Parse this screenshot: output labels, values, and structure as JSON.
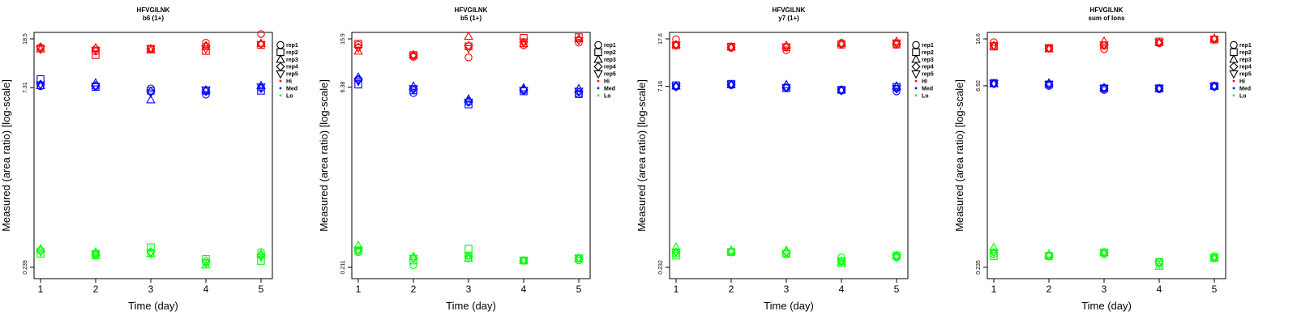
{
  "colors": {
    "Hi": "#ff0000",
    "Med": "#0000ff",
    "Lo": "#00ff00",
    "axis": "#000000"
  },
  "legend_labels": [
    "rep1",
    "rep2",
    "rep3",
    "rep4",
    "rep5",
    "Hi",
    "Med",
    "Lo"
  ],
  "chart_data": [
    {
      "type": "scatter",
      "title": "HFVGILNK",
      "subtitle": "b6 (1+)",
      "xlabel": "Time (day)",
      "ylabel": "Measured (area ratio) [log-scale]",
      "yscale": "log",
      "ylim": [
        0.239,
        18.5
      ],
      "yticks": [
        "0.239",
        "7.31",
        "18.5"
      ],
      "x": [
        1,
        2,
        3,
        4,
        5
      ],
      "grid": false,
      "legend_position": "right",
      "series": [
        {
          "name": "Hi",
          "color": "#ff0000",
          "points": [
            {
              "rep": "rep1",
              "values": [
                15.6,
                14.6,
                15.3,
                17.2,
                20.3
              ]
            },
            {
              "rep": "rep2",
              "values": [
                15.4,
                13.6,
                15.2,
                14.7,
                16.5
              ]
            },
            {
              "rep": "rep3",
              "values": [
                15.3,
                15.6,
                15.0,
                16.0,
                17.0
              ]
            },
            {
              "rep": "rep4",
              "values": [
                15.9,
                15.4,
                15.4,
                16.3,
                16.8
              ]
            },
            {
              "rep": "rep5",
              "values": [
                15.2,
                14.9,
                15.4,
                15.2,
                16.6
              ]
            }
          ]
        },
        {
          "name": "Med",
          "color": "#0000ff",
          "points": [
            {
              "rep": "rep1",
              "values": [
                7.5,
                7.5,
                7.2,
                6.4,
                7.3
              ]
            },
            {
              "rep": "rep2",
              "values": [
                8.6,
                7.4,
                6.9,
                6.9,
                6.9
              ]
            },
            {
              "rep": "rep3",
              "values": [
                7.6,
                8.0,
                5.8,
                7.0,
                7.6
              ]
            },
            {
              "rep": "rep4",
              "values": [
                7.8,
                7.6,
                6.8,
                6.8,
                7.2
              ]
            },
            {
              "rep": "rep5",
              "values": [
                7.7,
                7.5,
                6.6,
                7.0,
                7.4
              ]
            }
          ]
        },
        {
          "name": "Lo",
          "color": "#00ff00",
          "points": [
            {
              "rep": "rep1",
              "values": [
                0.33,
                0.31,
                0.32,
                0.26,
                0.32
              ]
            },
            {
              "rep": "rep2",
              "values": [
                0.31,
                0.3,
                0.35,
                0.28,
                0.27
              ]
            },
            {
              "rep": "rep3",
              "values": [
                0.34,
                0.32,
                0.31,
                0.25,
                0.31
              ]
            },
            {
              "rep": "rep4",
              "values": [
                0.33,
                0.3,
                0.32,
                0.27,
                0.3
              ]
            },
            {
              "rep": "rep5",
              "values": [
                0.32,
                0.31,
                0.31,
                0.26,
                0.29
              ]
            }
          ]
        }
      ]
    },
    {
      "type": "scatter",
      "title": "HFVGILNK",
      "subtitle": "b5 (1+)",
      "xlabel": "Time (day)",
      "ylabel": "Measured (area ratio) [log-scale]",
      "yscale": "log",
      "ylim": [
        0.211,
        15.9
      ],
      "yticks": [
        "0.211",
        "6.38",
        "15.9"
      ],
      "x": [
        1,
        2,
        3,
        4,
        5
      ],
      "grid": false,
      "legend_position": "right",
      "series": [
        {
          "name": "Hi",
          "color": "#ff0000",
          "points": [
            {
              "rep": "rep1",
              "values": [
                14.2,
                11.3,
                11.2,
                14.1,
                14.8
              ]
            },
            {
              "rep": "rep2",
              "values": [
                14.5,
                11.7,
                13.8,
                16.2,
                16.4
              ]
            },
            {
              "rep": "rep3",
              "values": [
                12.6,
                11.8,
                16.7,
                14.5,
                16.0
              ]
            },
            {
              "rep": "rep4",
              "values": [
                13.6,
                11.6,
                14.0,
                14.9,
                15.6
              ]
            },
            {
              "rep": "rep5",
              "values": [
                13.4,
                11.5,
                13.2,
                15.0,
                15.4
              ]
            }
          ]
        },
        {
          "name": "Med",
          "color": "#0000ff",
          "points": [
            {
              "rep": "rep1",
              "values": [
                7.4,
                5.7,
                4.8,
                6.0,
                5.6
              ]
            },
            {
              "rep": "rep2",
              "values": [
                6.7,
                6.0,
                4.6,
                5.9,
                5.6
              ]
            },
            {
              "rep": "rep3",
              "values": [
                7.7,
                6.5,
                5.1,
                6.3,
                6.2
              ]
            },
            {
              "rep": "rep4",
              "values": [
                7.3,
                6.1,
                4.9,
                6.1,
                5.8
              ]
            },
            {
              "rep": "rep5",
              "values": [
                7.1,
                6.2,
                4.8,
                6.0,
                5.9
              ]
            }
          ]
        },
        {
          "name": "Lo",
          "color": "#00ff00",
          "points": [
            {
              "rep": "rep1",
              "values": [
                0.28,
                0.22,
                0.25,
                0.24,
                0.24
              ]
            },
            {
              "rep": "rep2",
              "values": [
                0.29,
                0.24,
                0.3,
                0.24,
                0.25
              ]
            },
            {
              "rep": "rep3",
              "values": [
                0.32,
                0.26,
                0.25,
                0.24,
                0.25
              ]
            },
            {
              "rep": "rep4",
              "values": [
                0.29,
                0.25,
                0.26,
                0.24,
                0.25
              ]
            },
            {
              "rep": "rep5",
              "values": [
                0.29,
                0.25,
                0.26,
                0.24,
                0.25
              ]
            }
          ]
        }
      ]
    },
    {
      "type": "scatter",
      "title": "HFVGILNK",
      "subtitle": "y7 (1+)",
      "xlabel": "Time (day)",
      "ylabel": "Measured (area ratio) [log-scale]",
      "yscale": "log",
      "ylim": [
        0.232,
        17.6
      ],
      "yticks": [
        "0.232",
        "7.16",
        "17.6"
      ],
      "x": [
        1,
        2,
        3,
        4,
        5
      ],
      "grid": false,
      "legend_position": "right",
      "series": [
        {
          "name": "Hi",
          "color": "#ff0000",
          "points": [
            {
              "rep": "rep1",
              "values": [
                17.5,
                14.8,
                14.2,
                16.3,
                15.8
              ]
            },
            {
              "rep": "rep2",
              "values": [
                15.6,
                15.2,
                15.0,
                15.8,
                15.8
              ]
            },
            {
              "rep": "rep3",
              "values": [
                15.8,
                15.1,
                15.6,
                16.2,
                16.8
              ]
            },
            {
              "rep": "rep4",
              "values": [
                15.7,
                15.0,
                15.0,
                15.8,
                16.1
              ]
            },
            {
              "rep": "rep5",
              "values": [
                15.6,
                15.0,
                15.1,
                15.9,
                16.3
              ]
            }
          ]
        },
        {
          "name": "Med",
          "color": "#0000ff",
          "points": [
            {
              "rep": "rep1",
              "values": [
                7.1,
                7.3,
                7.0,
                6.6,
                6.5
              ]
            },
            {
              "rep": "rep2",
              "values": [
                7.3,
                7.5,
                6.9,
                6.7,
                7.1
              ]
            },
            {
              "rep": "rep3",
              "values": [
                7.2,
                7.4,
                7.4,
                6.7,
                7.2
              ]
            },
            {
              "rep": "rep4",
              "values": [
                7.2,
                7.4,
                7.0,
                6.7,
                6.8
              ]
            },
            {
              "rep": "rep5",
              "values": [
                7.1,
                7.4,
                7.0,
                6.6,
                6.9
              ]
            }
          ]
        },
        {
          "name": "Lo",
          "color": "#00ff00",
          "points": [
            {
              "rep": "rep1",
              "values": [
                0.3,
                0.31,
                0.3,
                0.28,
                0.28
              ]
            },
            {
              "rep": "rep2",
              "values": [
                0.29,
                0.31,
                0.3,
                0.26,
                0.29
              ]
            },
            {
              "rep": "rep3",
              "values": [
                0.34,
                0.32,
                0.32,
                0.25,
                0.29
              ]
            },
            {
              "rep": "rep4",
              "values": [
                0.31,
                0.31,
                0.31,
                0.26,
                0.29
              ]
            },
            {
              "rep": "rep5",
              "values": [
                0.31,
                0.31,
                0.3,
                0.26,
                0.28
              ]
            }
          ]
        }
      ]
    },
    {
      "type": "scatter",
      "title": "HFVGILNK",
      "subtitle": "sum of Ions",
      "xlabel": "Time (day)",
      "ylabel": "Measured (area ratio) [log-scale]",
      "yscale": "log",
      "ylim": [
        0.235,
        16.6
      ],
      "yticks": [
        "0.235",
        "6.92",
        "16.6"
      ],
      "x": [
        1,
        2,
        3,
        4,
        5
      ],
      "grid": false,
      "legend_position": "right",
      "series": [
        {
          "name": "Hi",
          "color": "#ff0000",
          "points": [
            {
              "rep": "rep1",
              "values": [
                15.6,
                13.9,
                13.7,
                15.3,
                16.5
              ]
            },
            {
              "rep": "rep2",
              "values": [
                14.4,
                14.0,
                14.7,
                15.8,
                16.4
              ]
            },
            {
              "rep": "rep3",
              "values": [
                14.6,
                13.8,
                15.9,
                15.5,
                16.8
              ]
            },
            {
              "rep": "rep4",
              "values": [
                14.7,
                13.9,
                14.7,
                15.4,
                16.5
              ]
            },
            {
              "rep": "rep5",
              "values": [
                14.6,
                13.9,
                14.8,
                15.5,
                16.5
              ]
            }
          ]
        },
        {
          "name": "Med",
          "color": "#0000ff",
          "points": [
            {
              "rep": "rep1",
              "values": [
                7.2,
                6.9,
                6.4,
                6.5,
                6.8
              ]
            },
            {
              "rep": "rep2",
              "values": [
                7.3,
                7.1,
                6.6,
                6.6,
                6.9
              ]
            },
            {
              "rep": "rep3",
              "values": [
                7.2,
                7.3,
                6.7,
                6.6,
                6.9
              ]
            },
            {
              "rep": "rep4",
              "values": [
                7.2,
                7.1,
                6.6,
                6.6,
                6.8
              ]
            },
            {
              "rep": "rep5",
              "values": [
                7.2,
                7.1,
                6.6,
                6.6,
                6.8
              ]
            }
          ]
        },
        {
          "name": "Lo",
          "color": "#00ff00",
          "points": [
            {
              "rep": "rep1",
              "values": [
                0.3,
                0.29,
                0.3,
                0.26,
                0.29
              ]
            },
            {
              "rep": "rep2",
              "values": [
                0.29,
                0.29,
                0.31,
                0.26,
                0.28
              ]
            },
            {
              "rep": "rep3",
              "values": [
                0.34,
                0.3,
                0.31,
                0.24,
                0.28
              ]
            },
            {
              "rep": "rep4",
              "values": [
                0.31,
                0.29,
                0.31,
                0.26,
                0.28
              ]
            },
            {
              "rep": "rep5",
              "values": [
                0.31,
                0.29,
                0.31,
                0.25,
                0.28
              ]
            }
          ]
        }
      ]
    }
  ]
}
